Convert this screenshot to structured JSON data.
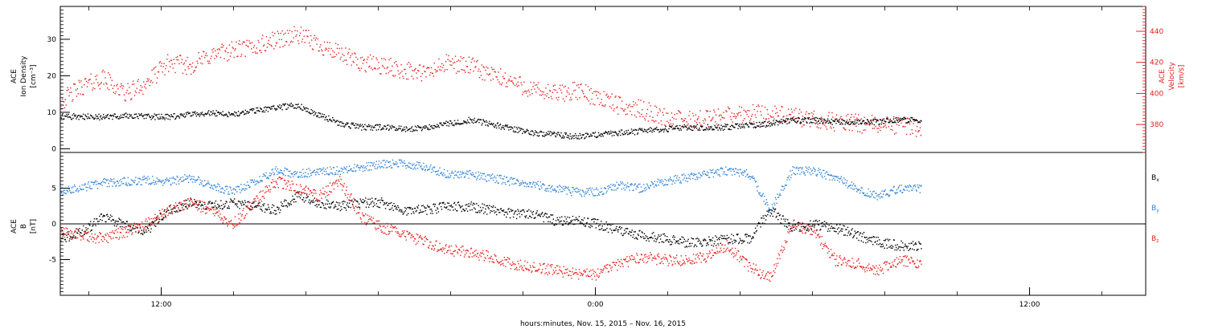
{
  "chart_data": [
    {
      "type": "scatter",
      "panel": "top",
      "left_axis": {
        "label_lines": [
          "ACE",
          "Ion Density",
          "[cm⁻³]"
        ],
        "ylim": [
          -1,
          39
        ],
        "ticks": [
          0,
          10,
          20,
          30
        ],
        "color": "#000000"
      },
      "right_axis": {
        "label_lines": [
          "ACE",
          "Velocity",
          "[km/s]"
        ],
        "ylim": [
          362,
          456
        ],
        "ticks": [
          380,
          400,
          420,
          440
        ],
        "color": "#e8201f"
      },
      "series": [
        {
          "axis": "left",
          "color": "#000000",
          "points": [
            [
              0,
              9
            ],
            [
              1,
              9
            ],
            [
              2,
              8.8
            ],
            [
              3,
              9.2
            ],
            [
              4,
              9
            ],
            [
              5,
              8.8
            ],
            [
              6,
              9.5
            ],
            [
              7,
              10
            ],
            [
              8,
              9.5
            ],
            [
              9,
              10.5
            ],
            [
              10,
              11.5
            ],
            [
              11,
              12
            ],
            [
              12,
              9.5
            ],
            [
              13,
              7
            ],
            [
              14,
              6
            ],
            [
              15,
              6
            ],
            [
              16,
              5.5
            ],
            [
              17,
              6
            ],
            [
              18,
              7
            ],
            [
              19,
              8
            ],
            [
              20,
              7
            ],
            [
              21,
              5.5
            ],
            [
              22,
              4.5
            ],
            [
              23,
              4
            ],
            [
              24,
              3.5
            ],
            [
              25,
              4
            ],
            [
              26,
              4.5
            ],
            [
              27,
              5
            ],
            [
              28,
              5.5
            ],
            [
              29,
              6
            ],
            [
              30,
              6
            ],
            [
              31,
              6
            ],
            [
              32,
              6.5
            ],
            [
              33,
              7
            ],
            [
              34,
              8
            ],
            [
              35,
              8
            ],
            [
              36,
              7.5
            ],
            [
              37,
              7.5
            ],
            [
              38,
              7.5
            ],
            [
              39,
              8
            ],
            [
              40,
              8
            ]
          ]
        },
        {
          "axis": "right",
          "color": "#e8201f",
          "points": [
            [
              0,
              395
            ],
            [
              1,
              405
            ],
            [
              2,
              410
            ],
            [
              3,
              400
            ],
            [
              4,
              407
            ],
            [
              5,
              420
            ],
            [
              6,
              418
            ],
            [
              7,
              425
            ],
            [
              8,
              428
            ],
            [
              9,
              430
            ],
            [
              10,
              435
            ],
            [
              11,
              438
            ],
            [
              12,
              432
            ],
            [
              13,
              425
            ],
            [
              14,
              420
            ],
            [
              15,
              418
            ],
            [
              16,
              415
            ],
            [
              17,
              413
            ],
            [
              18,
              420
            ],
            [
              19,
              418
            ],
            [
              20,
              412
            ],
            [
              21,
              408
            ],
            [
              22,
              402
            ],
            [
              23,
              400
            ],
            [
              24,
              402
            ],
            [
              25,
              398
            ],
            [
              26,
              392
            ],
            [
              27,
              390
            ],
            [
              28,
              385
            ],
            [
              29,
              383
            ],
            [
              30,
              384
            ],
            [
              31,
              386
            ],
            [
              32,
              388
            ],
            [
              33,
              387
            ],
            [
              34,
              385
            ],
            [
              35,
              383
            ],
            [
              36,
              382
            ],
            [
              37,
              381
            ],
            [
              38,
              380
            ],
            [
              39,
              380
            ],
            [
              40,
              378
            ]
          ]
        }
      ]
    },
    {
      "type": "scatter",
      "panel": "bottom",
      "left_axis": {
        "label_lines": [
          "ACE",
          "B",
          "[nT]"
        ],
        "ylim": [
          -10,
          10
        ],
        "ticks": [
          -5,
          0,
          5
        ],
        "zero_line": true,
        "color": "#000000"
      },
      "legend_position": "right",
      "series": [
        {
          "name": "Bx",
          "name_main": "B",
          "name_sub": "x",
          "color": "#000000",
          "points": [
            [
              0,
              -2
            ],
            [
              1,
              -1
            ],
            [
              2,
              1
            ],
            [
              3,
              0
            ],
            [
              4,
              -1
            ],
            [
              5,
              2
            ],
            [
              6,
              3
            ],
            [
              7,
              2.5
            ],
            [
              8,
              3
            ],
            [
              9,
              2.5
            ],
            [
              10,
              2
            ],
            [
              11,
              4
            ],
            [
              12,
              3
            ],
            [
              13,
              2.5
            ],
            [
              14,
              3
            ],
            [
              15,
              3
            ],
            [
              16,
              2
            ],
            [
              17,
              2
            ],
            [
              18,
              2.5
            ],
            [
              19,
              2.5
            ],
            [
              20,
              2
            ],
            [
              21,
              1.5
            ],
            [
              22,
              1.5
            ],
            [
              23,
              0.5
            ],
            [
              24,
              0.5
            ],
            [
              25,
              0
            ],
            [
              26,
              -1
            ],
            [
              27,
              -1.5
            ],
            [
              28,
              -2
            ],
            [
              29,
              -2.5
            ],
            [
              30,
              -2.5
            ],
            [
              31,
              -2
            ],
            [
              32,
              -2
            ],
            [
              33,
              2
            ],
            [
              34,
              -0.5
            ],
            [
              35,
              0
            ],
            [
              36,
              -0.5
            ],
            [
              37,
              -1.5
            ],
            [
              38,
              -2.5
            ],
            [
              39,
              -3
            ],
            [
              40,
              -3
            ]
          ]
        },
        {
          "name": "By",
          "name_main": "B",
          "name_sub": "y",
          "color": "#2f82d6",
          "points": [
            [
              0,
              4.5
            ],
            [
              1,
              5.2
            ],
            [
              2,
              5.8
            ],
            [
              3,
              6
            ],
            [
              4,
              6.2
            ],
            [
              5,
              6
            ],
            [
              6,
              6.5
            ],
            [
              7,
              5.5
            ],
            [
              8,
              4.5
            ],
            [
              9,
              6
            ],
            [
              10,
              7.5
            ],
            [
              11,
              7
            ],
            [
              12,
              7.5
            ],
            [
              13,
              7.5
            ],
            [
              14,
              8
            ],
            [
              15,
              8.5
            ],
            [
              16,
              8.5
            ],
            [
              17,
              8
            ],
            [
              18,
              7
            ],
            [
              19,
              7
            ],
            [
              20,
              6.5
            ],
            [
              21,
              6
            ],
            [
              22,
              5.5
            ],
            [
              23,
              5
            ],
            [
              24,
              4.5
            ],
            [
              25,
              4.5
            ],
            [
              26,
              5.5
            ],
            [
              27,
              5
            ],
            [
              28,
              6
            ],
            [
              29,
              6.5
            ],
            [
              30,
              7
            ],
            [
              31,
              7.5
            ],
            [
              32,
              7
            ],
            [
              33,
              2
            ],
            [
              34,
              7.5
            ],
            [
              35,
              7.5
            ],
            [
              36,
              6.5
            ],
            [
              37,
              5
            ],
            [
              38,
              4
            ],
            [
              39,
              5
            ],
            [
              40,
              5
            ]
          ]
        },
        {
          "name": "Bz",
          "name_main": "B",
          "name_sub": "z",
          "color": "#e8201f",
          "points": [
            [
              0,
              -1
            ],
            [
              1,
              -1.5
            ],
            [
              2,
              -2
            ],
            [
              3,
              -1
            ],
            [
              4,
              0
            ],
            [
              5,
              2
            ],
            [
              6,
              3
            ],
            [
              7,
              2
            ],
            [
              8,
              0
            ],
            [
              9,
              3
            ],
            [
              10,
              6
            ],
            [
              11,
              5
            ],
            [
              12,
              4
            ],
            [
              13,
              6
            ],
            [
              14,
              1
            ],
            [
              15,
              -0.5
            ],
            [
              16,
              -1.5
            ],
            [
              17,
              -2.5
            ],
            [
              18,
              -3.5
            ],
            [
              19,
              -4
            ],
            [
              20,
              -4.5
            ],
            [
              21,
              -5.5
            ],
            [
              22,
              -6
            ],
            [
              23,
              -6.5
            ],
            [
              24,
              -7
            ],
            [
              25,
              -7
            ],
            [
              26,
              -5.5
            ],
            [
              27,
              -4.5
            ],
            [
              28,
              -5
            ],
            [
              29,
              -5
            ],
            [
              30,
              -4.5
            ],
            [
              31,
              -3
            ],
            [
              32,
              -6
            ],
            [
              33,
              -7.5
            ],
            [
              34,
              0
            ],
            [
              35,
              -1
            ],
            [
              36,
              -5
            ],
            [
              37,
              -5.5
            ],
            [
              38,
              -6.5
            ],
            [
              39,
              -5
            ],
            [
              40,
              -5.5
            ]
          ]
        }
      ]
    }
  ],
  "x_axis": {
    "ticks": [
      {
        "label": "12:00",
        "pos": 0.093
      },
      {
        "label": "0:00",
        "pos": 0.493
      },
      {
        "label": "12:00",
        "pos": 0.893
      }
    ],
    "xlabel": "hours:minutes, Nov. 15, 2015 – Nov. 16, 2015"
  },
  "colors": {
    "axis": "#000000",
    "velocity": "#e8201f",
    "by": "#2f82d6"
  }
}
